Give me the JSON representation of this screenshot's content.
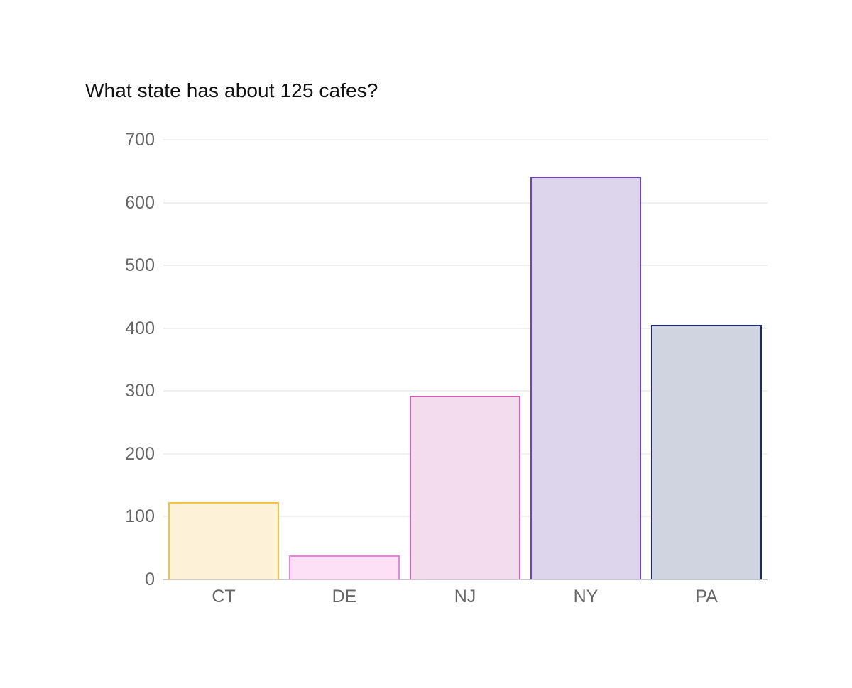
{
  "title": "What state has about 125 cafes?",
  "chart_data": {
    "type": "bar",
    "title": "What state has about 125 cafes?",
    "xlabel": "",
    "ylabel": "",
    "categories": [
      "CT",
      "DE",
      "NJ",
      "NY",
      "PA"
    ],
    "values": [
      123,
      38,
      292,
      641,
      405
    ],
    "ylim": [
      0,
      700
    ],
    "yticks": [
      0,
      100,
      200,
      300,
      400,
      500,
      600,
      700
    ],
    "grid": true,
    "legend": null,
    "colors": {
      "CT": {
        "stroke": "#f4c542",
        "fill": "#fdf1d8"
      },
      "DE": {
        "stroke": "#f57ddc",
        "fill": "#fde0f6"
      },
      "NJ": {
        "stroke": "#cc5fb0",
        "fill": "#f2dcee"
      },
      "NY": {
        "stroke": "#6a45b8",
        "fill": "#ddd5ec"
      },
      "PA": {
        "stroke": "#1e2a6b",
        "fill": "#d0d4e0"
      }
    }
  }
}
